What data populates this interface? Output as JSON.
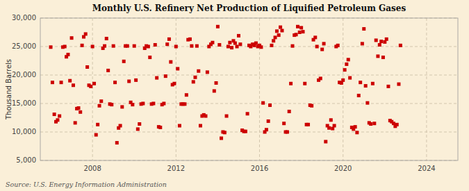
{
  "chart_data": {
    "type": "scatter",
    "title": "Monthly U.S. Refinery Net Production of Liquified Petroleum Gases",
    "ylabel": "Thousand Barrels",
    "source": "Source: U.S. Energy Information Administration",
    "color": "#cc0000",
    "marker": "square",
    "grid": true,
    "xlim": [
      2005.5,
      2025.5
    ],
    "xticks": [
      2008,
      2012,
      2016,
      2020,
      2024
    ],
    "ylim": [
      5000,
      30000
    ],
    "yticks": [
      {
        "value": 5000,
        "label": "5,000"
      },
      {
        "value": 10000,
        "label": "10,000"
      },
      {
        "value": 15000,
        "label": "15,000"
      },
      {
        "value": 20000,
        "label": "20,000"
      },
      {
        "value": 25000,
        "label": "25,000"
      },
      {
        "value": 30000,
        "label": "30,000"
      }
    ],
    "x": [
      2006.0,
      2006.08,
      2006.17,
      2006.25,
      2006.33,
      2006.42,
      2006.5,
      2006.58,
      2006.67,
      2006.75,
      2006.83,
      2006.92,
      2007.0,
      2007.08,
      2007.17,
      2007.25,
      2007.33,
      2007.42,
      2007.5,
      2007.58,
      2007.67,
      2007.75,
      2007.83,
      2007.92,
      2008.0,
      2008.08,
      2008.17,
      2008.25,
      2008.33,
      2008.42,
      2008.5,
      2008.58,
      2008.67,
      2008.75,
      2008.83,
      2008.92,
      2009.0,
      2009.08,
      2009.17,
      2009.25,
      2009.33,
      2009.42,
      2009.5,
      2009.58,
      2009.67,
      2009.75,
      2009.83,
      2009.92,
      2010.0,
      2010.08,
      2010.17,
      2010.25,
      2010.33,
      2010.42,
      2010.5,
      2010.58,
      2010.67,
      2010.75,
      2010.83,
      2010.92,
      2011.0,
      2011.08,
      2011.17,
      2011.25,
      2011.33,
      2011.42,
      2011.5,
      2011.58,
      2011.67,
      2011.75,
      2011.83,
      2011.92,
      2012.0,
      2012.08,
      2012.17,
      2012.25,
      2012.33,
      2012.42,
      2012.5,
      2012.58,
      2012.67,
      2012.75,
      2012.83,
      2012.92,
      2013.0,
      2013.08,
      2013.17,
      2013.25,
      2013.33,
      2013.42,
      2013.5,
      2013.58,
      2013.67,
      2013.75,
      2013.83,
      2013.92,
      2014.0,
      2014.08,
      2014.17,
      2014.25,
      2014.33,
      2014.42,
      2014.5,
      2014.58,
      2014.67,
      2014.75,
      2014.83,
      2014.92,
      2015.0,
      2015.08,
      2015.17,
      2015.25,
      2015.33,
      2015.42,
      2015.5,
      2015.58,
      2015.67,
      2015.75,
      2015.83,
      2015.92,
      2016.0,
      2016.08,
      2016.17,
      2016.25,
      2016.33,
      2016.42,
      2016.5,
      2016.58,
      2016.67,
      2016.75,
      2016.83,
      2016.92,
      2017.0,
      2017.08,
      2017.17,
      2017.25,
      2017.33,
      2017.42,
      2017.5,
      2017.58,
      2017.67,
      2017.75,
      2017.83,
      2017.92,
      2018.0,
      2018.08,
      2018.17,
      2018.25,
      2018.33,
      2018.42,
      2018.5,
      2018.58,
      2018.67,
      2018.75,
      2018.83,
      2018.92,
      2019.0,
      2019.08,
      2019.17,
      2019.25,
      2019.33,
      2019.42,
      2019.5,
      2019.58,
      2019.67,
      2019.75,
      2019.83,
      2019.92,
      2020.0,
      2020.08,
      2020.17,
      2020.25,
      2020.33,
      2020.42,
      2020.5,
      2020.58,
      2020.67,
      2020.75,
      2020.83,
      2020.92,
      2021.0,
      2021.08,
      2021.17,
      2021.25,
      2021.33,
      2021.42,
      2021.5,
      2021.58,
      2021.67,
      2021.75,
      2021.83,
      2021.92,
      2022.0,
      2022.08,
      2022.17,
      2022.25,
      2022.33,
      2022.42,
      2022.5,
      2022.58,
      2022.67,
      2022.75
    ],
    "values": [
      24900,
      18700,
      13100,
      11800,
      12100,
      12800,
      18700,
      24900,
      25000,
      23200,
      23600,
      19000,
      26500,
      18200,
      11600,
      14100,
      14200,
      13500,
      25200,
      26700,
      27200,
      21400,
      18200,
      18000,
      25000,
      18500,
      9500,
      11300,
      14600,
      15400,
      24700,
      25100,
      26400,
      20800,
      14900,
      14800,
      25100,
      18700,
      8100,
      10700,
      11100,
      14400,
      22400,
      25100,
      25100,
      18900,
      15200,
      14800,
      25100,
      19100,
      10500,
      11400,
      14900,
      15000,
      24700,
      25100,
      25000,
      23100,
      14900,
      15000,
      25300,
      19500,
      10900,
      10800,
      14800,
      15000,
      19800,
      25400,
      26300,
      22300,
      18300,
      18500,
      25000,
      21100,
      11100,
      14900,
      14900,
      14900,
      16500,
      26200,
      26300,
      25100,
      18800,
      19600,
      25100,
      20700,
      11100,
      12800,
      13000,
      12800,
      20500,
      25000,
      25400,
      25700,
      17200,
      18600,
      28500,
      25300,
      8900,
      10000,
      9900,
      12800,
      25000,
      25700,
      24800,
      26000,
      25600,
      25000,
      26900,
      25400,
      10300,
      10100,
      10100,
      13200,
      25200,
      25000,
      25400,
      25200,
      25600,
      25000,
      25200,
      24900,
      15100,
      10000,
      10400,
      11900,
      14700,
      25200,
      26000,
      26600,
      27700,
      27000,
      28400,
      27800,
      11500,
      10000,
      10000,
      13600,
      18500,
      25100,
      27000,
      27100,
      28500,
      27500,
      28300,
      27600,
      18500,
      11300,
      11300,
      14700,
      14600,
      26200,
      26600,
      25000,
      19100,
      19400,
      24500,
      25500,
      8300,
      11100,
      10700,
      12100,
      10600,
      11100,
      25000,
      25200,
      18700,
      18600,
      19100,
      20900,
      21900,
      22700,
      19500,
      10800,
      10500,
      10900,
      9900,
      16400,
      18700,
      25500,
      28100,
      18100,
      15100,
      11600,
      11400,
      18500,
      11500,
      26100,
      23300,
      25300,
      25900,
      23100,
      25800,
      26300,
      18000,
      12000,
      11800,
      11500,
      11000,
      11300,
      18400,
      25200
    ]
  }
}
